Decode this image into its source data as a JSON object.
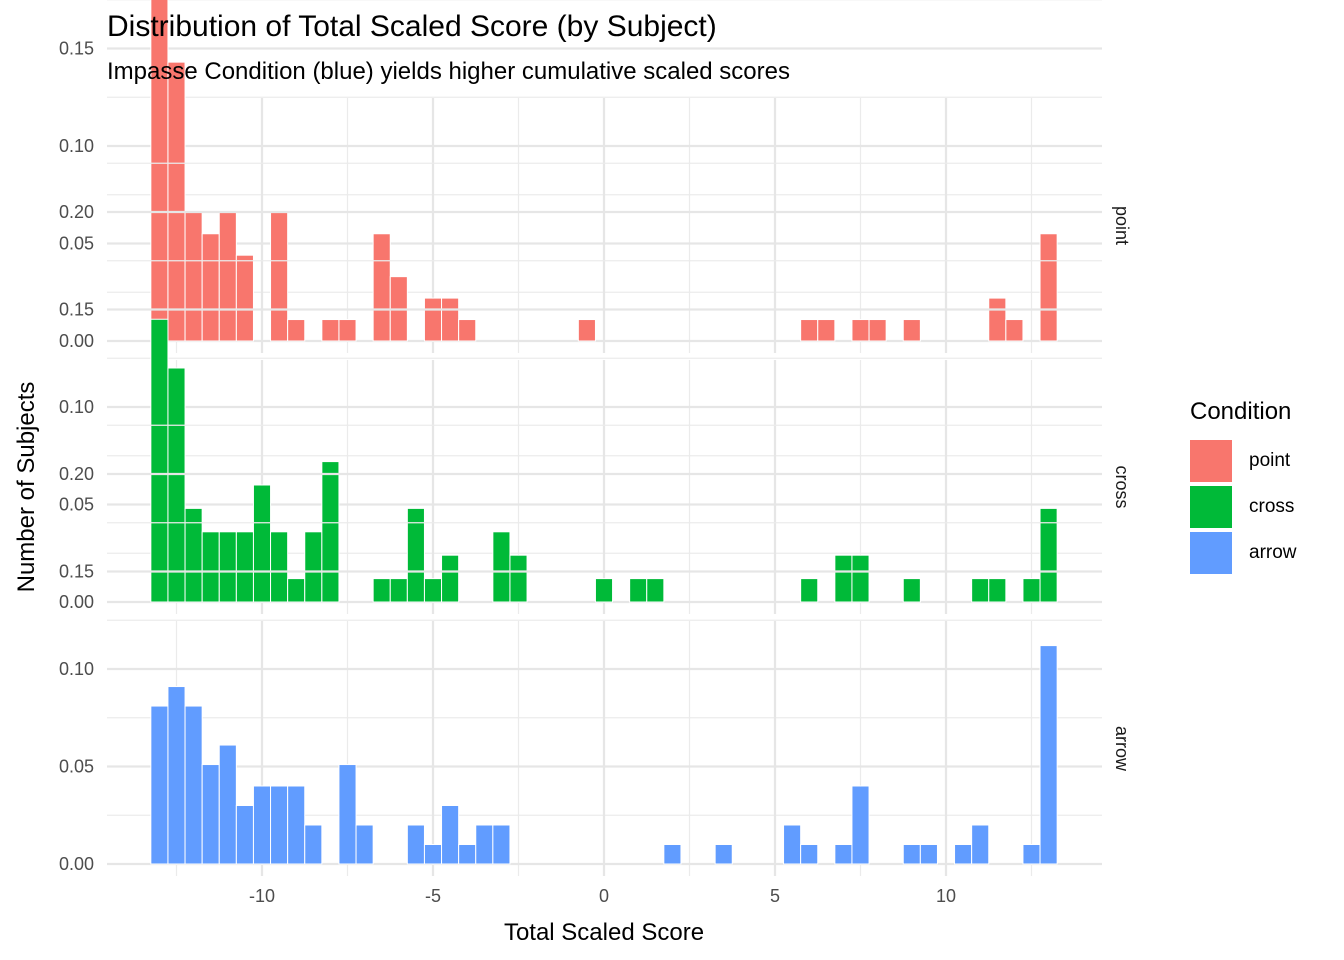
{
  "chart_data": {
    "type": "bar",
    "title": "Distribution of Total Scaled Score (by Subject)",
    "subtitle": "Impasse Condition (blue) yields higher cumulative scaled scores",
    "xlabel": "Total Scaled Score",
    "ylabel": "Number of Subjects",
    "xlim": [
      -14.5,
      14.5
    ],
    "ylim": [
      0,
      0.235
    ],
    "x_ticks": [
      -10,
      -5,
      0,
      5,
      10
    ],
    "x_tick_labels": [
      "-10",
      "-5",
      "0",
      "5",
      "10"
    ],
    "y_ticks": [
      0,
      0.05,
      0.1,
      0.15,
      0.2
    ],
    "y_tick_labels": [
      "0.00",
      "0.05",
      "0.10",
      "0.15",
      "0.20"
    ],
    "grid": true,
    "legend": {
      "title": "Condition",
      "position": "right"
    },
    "series": [
      {
        "name": "point",
        "color": "#F8766D",
        "x": [
          -13,
          -12.5,
          -12,
          -11.5,
          -11,
          -10.5,
          -9.5,
          -9,
          -8,
          -7.5,
          -6.5,
          -6,
          -5,
          -4.5,
          -4,
          -0.5,
          6,
          6.5,
          7.5,
          8,
          9,
          11.5,
          12,
          13
        ],
        "values": [
          0.231,
          0.143,
          0.066,
          0.055,
          0.066,
          0.044,
          0.066,
          0.011,
          0.011,
          0.011,
          0.055,
          0.033,
          0.022,
          0.022,
          0.011,
          0.011,
          0.011,
          0.011,
          0.011,
          0.011,
          0.011,
          0.022,
          0.011,
          0.055
        ]
      },
      {
        "name": "cross",
        "color": "#00BA38",
        "x": [
          -13,
          -12.5,
          -12,
          -11.5,
          -11,
          -10.5,
          -10,
          -9.5,
          -9,
          -8.5,
          -8,
          -6.5,
          -6,
          -5.5,
          -5,
          -4.5,
          -3,
          -2.5,
          0,
          1,
          1.5,
          6,
          7,
          7.5,
          9,
          11,
          11.5,
          12.5,
          13
        ],
        "values": [
          0.145,
          0.12,
          0.048,
          0.036,
          0.036,
          0.036,
          0.06,
          0.036,
          0.012,
          0.036,
          0.072,
          0.012,
          0.012,
          0.048,
          0.012,
          0.024,
          0.036,
          0.024,
          0.012,
          0.012,
          0.012,
          0.012,
          0.024,
          0.024,
          0.012,
          0.012,
          0.012,
          0.012,
          0.048
        ]
      },
      {
        "name": "arrow",
        "color": "#619CFF",
        "x": [
          -13,
          -12.5,
          -12,
          -11.5,
          -11,
          -10.5,
          -10,
          -9.5,
          -9,
          -8.5,
          -7.5,
          -7,
          -5.5,
          -5,
          -4.5,
          -4,
          -3.5,
          -3,
          2,
          3.5,
          5.5,
          6,
          7,
          7.5,
          9,
          9.5,
          10.5,
          11,
          12.5,
          13
        ],
        "values": [
          0.081,
          0.091,
          0.081,
          0.051,
          0.061,
          0.03,
          0.04,
          0.04,
          0.04,
          0.02,
          0.051,
          0.02,
          0.02,
          0.01,
          0.03,
          0.01,
          0.02,
          0.02,
          0.01,
          0.01,
          0.02,
          0.01,
          0.01,
          0.04,
          0.01,
          0.01,
          0.01,
          0.02,
          0.01,
          0.112
        ]
      }
    ]
  }
}
